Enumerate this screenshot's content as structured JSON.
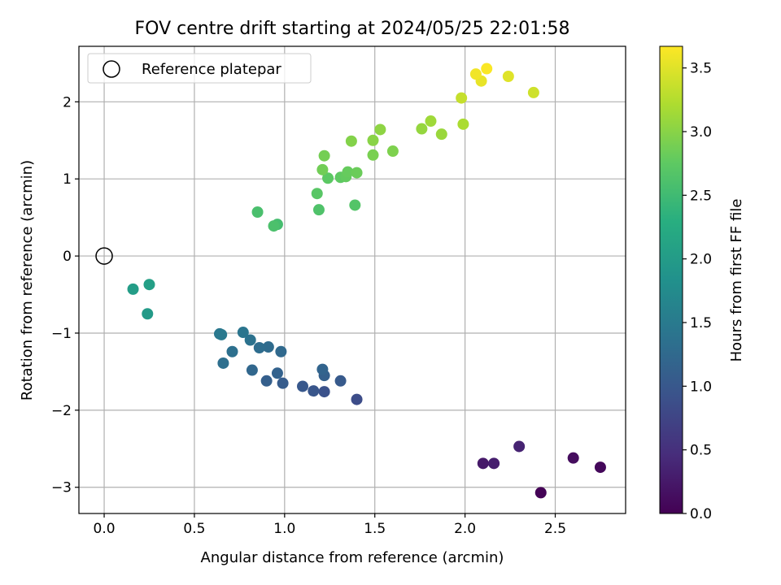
{
  "chart_data": {
    "type": "scatter",
    "title": "FOV centre drift starting at 2024/05/25 22:01:58",
    "xlabel": "Angular distance from reference (arcmin)",
    "ylabel": "Rotation from reference (arcmin)",
    "xlim": [
      -0.14,
      2.89
    ],
    "ylim": [
      -3.34,
      2.72
    ],
    "xticks": [
      0.0,
      0.5,
      1.0,
      1.5,
      2.0,
      2.5
    ],
    "xtick_labels": [
      "0.0",
      "0.5",
      "1.0",
      "1.5",
      "2.0",
      "2.5"
    ],
    "yticks": [
      -3,
      -2,
      -1,
      0,
      1,
      2
    ],
    "ytick_labels": [
      "−3",
      "−2",
      "−1",
      "0",
      "1",
      "2"
    ],
    "grid": true,
    "legend": {
      "position": "top-left",
      "entries": [
        {
          "label": "Reference platepar",
          "marker": "open-circle"
        }
      ]
    },
    "reference_point": {
      "x": 0.0,
      "y": 0.0
    },
    "colorbar": {
      "label": "Hours from first FF file",
      "colormap": "viridis",
      "range": [
        0.0,
        3.67
      ],
      "ticks": [
        0.0,
        0.5,
        1.0,
        1.5,
        2.0,
        2.5,
        3.0,
        3.5
      ],
      "tick_labels": [
        "0.0",
        "0.5",
        "1.0",
        "1.5",
        "2.0",
        "2.5",
        "3.0",
        "3.5"
      ]
    },
    "series": [
      {
        "points": [
          {
            "x": 2.42,
            "y": -3.07,
            "hours": 0.02
          },
          {
            "x": 2.75,
            "y": -2.74,
            "hours": 0.07
          },
          {
            "x": 2.6,
            "y": -2.62,
            "hours": 0.12
          },
          {
            "x": 2.1,
            "y": -2.69,
            "hours": 0.25
          },
          {
            "x": 2.16,
            "y": -2.69,
            "hours": 0.3
          },
          {
            "x": 2.3,
            "y": -2.47,
            "hours": 0.35
          },
          {
            "x": 1.4,
            "y": -1.86,
            "hours": 0.85
          },
          {
            "x": 1.22,
            "y": -1.76,
            "hours": 0.92
          },
          {
            "x": 1.16,
            "y": -1.75,
            "hours": 0.97
          },
          {
            "x": 1.1,
            "y": -1.69,
            "hours": 1.0
          },
          {
            "x": 1.31,
            "y": -1.62,
            "hours": 1.03
          },
          {
            "x": 0.99,
            "y": -1.65,
            "hours": 1.06
          },
          {
            "x": 0.9,
            "y": -1.62,
            "hours": 1.1
          },
          {
            "x": 1.22,
            "y": -1.55,
            "hours": 1.12
          },
          {
            "x": 0.96,
            "y": -1.52,
            "hours": 1.15
          },
          {
            "x": 1.21,
            "y": -1.47,
            "hours": 1.18
          },
          {
            "x": 0.82,
            "y": -1.48,
            "hours": 1.22
          },
          {
            "x": 0.98,
            "y": -1.24,
            "hours": 1.25
          },
          {
            "x": 0.91,
            "y": -1.18,
            "hours": 1.28
          },
          {
            "x": 0.86,
            "y": -1.19,
            "hours": 1.3
          },
          {
            "x": 0.66,
            "y": -1.39,
            "hours": 1.33
          },
          {
            "x": 0.71,
            "y": -1.24,
            "hours": 1.35
          },
          {
            "x": 0.81,
            "y": -1.09,
            "hours": 1.38
          },
          {
            "x": 0.77,
            "y": -0.99,
            "hours": 1.42
          },
          {
            "x": 0.64,
            "y": -1.01,
            "hours": 1.45
          },
          {
            "x": 0.65,
            "y": -1.02,
            "hours": 1.48
          },
          {
            "x": 0.24,
            "y": -0.75,
            "hours": 1.98
          },
          {
            "x": 0.16,
            "y": -0.43,
            "hours": 2.02
          },
          {
            "x": 0.25,
            "y": -0.37,
            "hours": 2.05
          },
          {
            "x": 0.96,
            "y": 0.41,
            "hours": 2.55
          },
          {
            "x": 0.85,
            "y": 0.57,
            "hours": 2.58
          },
          {
            "x": 0.94,
            "y": 0.39,
            "hours": 2.6
          },
          {
            "x": 1.19,
            "y": 0.6,
            "hours": 2.63
          },
          {
            "x": 1.39,
            "y": 0.66,
            "hours": 2.66
          },
          {
            "x": 1.18,
            "y": 0.81,
            "hours": 2.7
          },
          {
            "x": 1.24,
            "y": 1.01,
            "hours": 2.73
          },
          {
            "x": 1.31,
            "y": 1.02,
            "hours": 2.75
          },
          {
            "x": 1.34,
            "y": 1.03,
            "hours": 2.78
          },
          {
            "x": 1.35,
            "y": 1.09,
            "hours": 2.8
          },
          {
            "x": 1.4,
            "y": 1.08,
            "hours": 2.83
          },
          {
            "x": 1.21,
            "y": 1.12,
            "hours": 2.86
          },
          {
            "x": 1.22,
            "y": 1.3,
            "hours": 2.88
          },
          {
            "x": 1.49,
            "y": 1.31,
            "hours": 2.91
          },
          {
            "x": 1.6,
            "y": 1.36,
            "hours": 2.94
          },
          {
            "x": 1.37,
            "y": 1.49,
            "hours": 2.97
          },
          {
            "x": 1.49,
            "y": 1.5,
            "hours": 3.0
          },
          {
            "x": 1.53,
            "y": 1.64,
            "hours": 3.03
          },
          {
            "x": 1.76,
            "y": 1.65,
            "hours": 3.07
          },
          {
            "x": 1.87,
            "y": 1.58,
            "hours": 3.1
          },
          {
            "x": 1.81,
            "y": 1.75,
            "hours": 3.13
          },
          {
            "x": 1.99,
            "y": 1.71,
            "hours": 3.2
          },
          {
            "x": 1.98,
            "y": 2.05,
            "hours": 3.35
          },
          {
            "x": 2.38,
            "y": 2.12,
            "hours": 3.4
          },
          {
            "x": 2.24,
            "y": 2.33,
            "hours": 3.5
          },
          {
            "x": 2.09,
            "y": 2.27,
            "hours": 3.55
          },
          {
            "x": 2.06,
            "y": 2.36,
            "hours": 3.6
          },
          {
            "x": 2.12,
            "y": 2.43,
            "hours": 3.65
          }
        ]
      }
    ]
  }
}
